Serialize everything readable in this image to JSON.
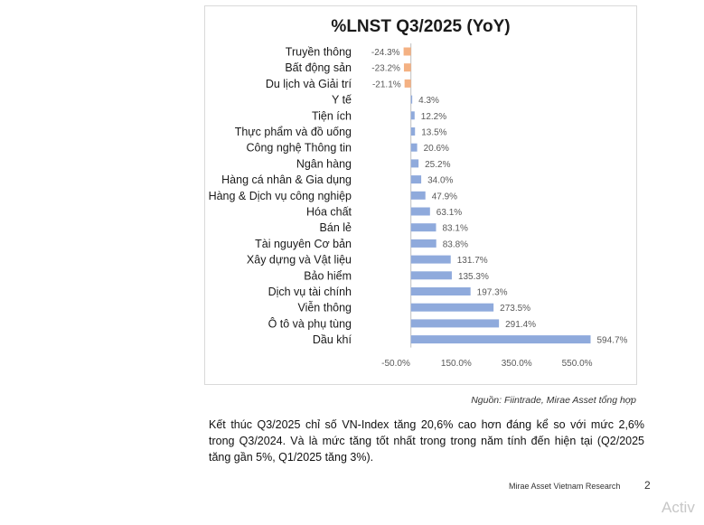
{
  "chart_data": {
    "type": "bar",
    "orientation": "horizontal",
    "title": "%LNST Q3/2025 (YoY)",
    "categories": [
      "Truyền thông",
      "Bất động sản",
      "Du lịch và Giải trí",
      "Y tế",
      "Tiện ích",
      "Thực phẩm và đồ uống",
      "Công nghệ Thông tin",
      "Ngân hàng",
      "Hàng cá nhân & Gia dụng",
      "Hàng & Dịch vụ công nghiệp",
      "Hóa chất",
      "Bán lẻ",
      "Tài nguyên Cơ bản",
      "Xây dựng và Vật liệu",
      "Bảo hiểm",
      "Dịch vụ tài chính",
      "Viễn thông",
      "Ô tô và phụ tùng",
      "Dầu khí"
    ],
    "values": [
      -24.3,
      -23.2,
      -21.1,
      4.3,
      12.2,
      13.5,
      20.6,
      25.2,
      34.0,
      47.9,
      63.1,
      83.1,
      83.8,
      131.7,
      135.3,
      197.3,
      273.5,
      291.4,
      594.7
    ],
    "value_labels": [
      "-24.3%",
      "-23.2%",
      "-21.1%",
      "4.3%",
      "12.2%",
      "13.5%",
      "20.6%",
      "25.2%",
      "34.0%",
      "47.9%",
      "63.1%",
      "83.1%",
      "83.8%",
      "131.7%",
      "135.3%",
      "197.3%",
      "273.5%",
      "291.4%",
      "594.7%"
    ],
    "xticks": [
      -50,
      150,
      350,
      550
    ],
    "xtick_labels": [
      "-50.0%",
      "150.0%",
      "350.0%",
      "550.0%"
    ],
    "xlim": [
      -50,
      650
    ],
    "colors": {
      "negative": "#f4b183",
      "positive": "#8faadc"
    },
    "grid": false,
    "legend": "none"
  },
  "source_note": "Nguồn: Fiintrade, Mirae Asset tổng hợp",
  "paragraph": "Kết thúc Q3/2025 chỉ số VN-Index tăng 20,6% cao hơn đáng kể so với mức 2,6% trong Q3/2024. Và là mức tăng tốt nhất trong trong năm tính đến hiện tại (Q2/2025 tăng gần 5%, Q1/2025 tăng 3%).",
  "footer": {
    "label": "Mirae Asset Vietnam Research",
    "page_number": "2"
  },
  "watermark": "Activ"
}
